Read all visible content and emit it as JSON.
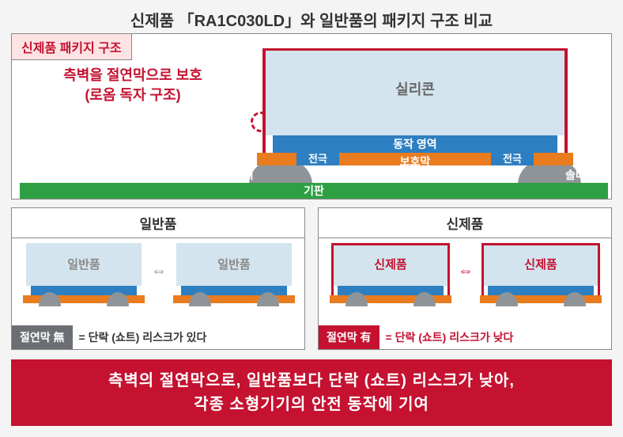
{
  "title": "신제품 「RA1C030LD」와 일반품의 패키지 구조 비교",
  "main": {
    "tag": "신제품 패키지 구조",
    "callout_line1": "측벽을 절연막으로 보호",
    "callout_line2": "(로옴 독자 구조)",
    "silicon": "실리콘",
    "active_region": "동작 영역",
    "protective_film": "보호막",
    "electrode": "전극",
    "solder": "솔더",
    "board": "기판"
  },
  "compare": {
    "generic_title": "일반품",
    "new_title": "신제품",
    "generic_chip_label": "일반품",
    "new_chip_label": "신제품",
    "arrow": "⇔",
    "badge_no": "절연막 無",
    "badge_yes": "절연막 有",
    "risk_high": "= 단락 (쇼트) 리스크가 있다",
    "risk_low": "= 단락 (쇼트) 리스크가 낮다"
  },
  "conclusion": {
    "line1": "측벽의 절연막으로, 일반품보다 단락 (쇼트) 리스크가 낮아,",
    "line2": "각종 소형기기의 안전 동작에 기여"
  },
  "colors": {
    "accent_red": "#c41230",
    "silicon_bg": "#d4e4ee",
    "blue_layer": "#2d7fc1",
    "orange_layer": "#e87c1e",
    "solder": "#8f9499",
    "board_green": "#2ea043",
    "tag_bg": "#fde3e3",
    "badge_gray": "#6b6f73"
  }
}
